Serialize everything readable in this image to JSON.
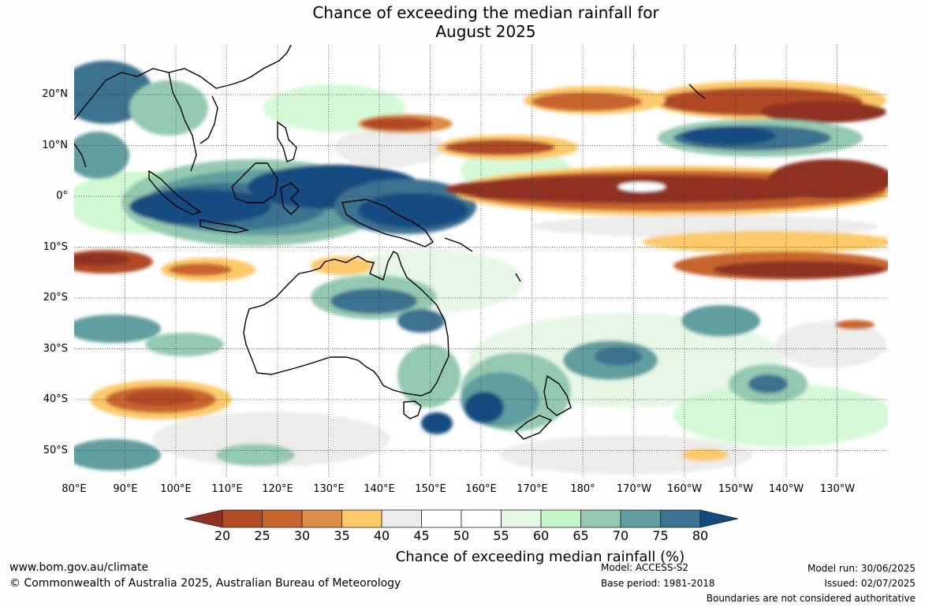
{
  "title_line1": "Chance of exceeding the median rainfall for",
  "title_line2": "August 2025",
  "lat_labels": [
    "20°N",
    "10°N",
    "0°",
    "10°S",
    "20°S",
    "30°S",
    "40°S",
    "50°S"
  ],
  "lon_labels": [
    "80°E",
    "90°E",
    "100°E",
    "110°E",
    "120°E",
    "130°E",
    "140°E",
    "150°E",
    "160°E",
    "170°E",
    "180°",
    "170°W",
    "160°W",
    "150°W",
    "140°W",
    "130°W"
  ],
  "colorbar": {
    "ticks": [
      "20",
      "25",
      "30",
      "35",
      "40",
      "45",
      "50",
      "55",
      "60",
      "65",
      "70",
      "75",
      "80"
    ],
    "colors": [
      "#8f3020",
      "#b14a25",
      "#c8652e",
      "#dc8d45",
      "#fdc96a",
      "#ececea",
      "#ffffff",
      "#ffffff",
      "#e7f7e6",
      "#c4f7c8",
      "#94c9b1",
      "#619e9f",
      "#3d7190",
      "#134b81"
    ],
    "label": "Chance of exceeding median rainfall (%)"
  },
  "footer": {
    "url": "www.bom.gov.au/climate",
    "copyright": "© Commonwealth of Australia 2025, Australian Bureau of Meteorology",
    "model": "Model: ACCESS-S2",
    "base_period": "Base period: 1981-2018",
    "model_run": "Model run: 30/06/2025",
    "issued": "Issued: 02/07/2025",
    "disclaimer": "Boundaries are not considered authoritative"
  }
}
